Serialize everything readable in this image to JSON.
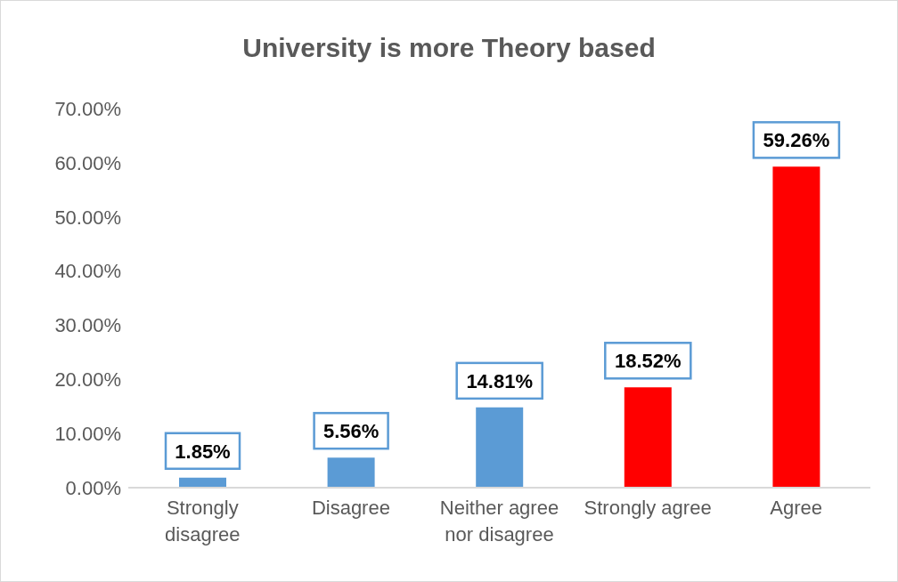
{
  "chart_data": {
    "type": "bar",
    "title": "University is more Theory based",
    "categories": [
      "Strongly disagree",
      "Disagree",
      "Neither agree nor disagree",
      "Strongly agree",
      "Agree"
    ],
    "values": [
      1.85,
      5.56,
      14.81,
      18.52,
      59.26
    ],
    "colors": [
      "#5b9bd5",
      "#5b9bd5",
      "#5b9bd5",
      "#ff0000",
      "#ff0000"
    ],
    "value_labels": [
      "1.85%",
      "5.56%",
      "14.81%",
      "18.52%",
      "59.26%"
    ],
    "ylim": [
      0,
      70
    ],
    "yticks": [
      {
        "value": 0,
        "label": "0.00%"
      },
      {
        "value": 10,
        "label": "10.00%"
      },
      {
        "value": 20,
        "label": "20.00%"
      },
      {
        "value": 30,
        "label": "30.00%"
      },
      {
        "value": 40,
        "label": "40.00%"
      },
      {
        "value": 50,
        "label": "50.00%"
      },
      {
        "value": 60,
        "label": "60.00%"
      },
      {
        "value": 70,
        "label": "70.00%"
      }
    ],
    "grid": false,
    "legend": false
  }
}
